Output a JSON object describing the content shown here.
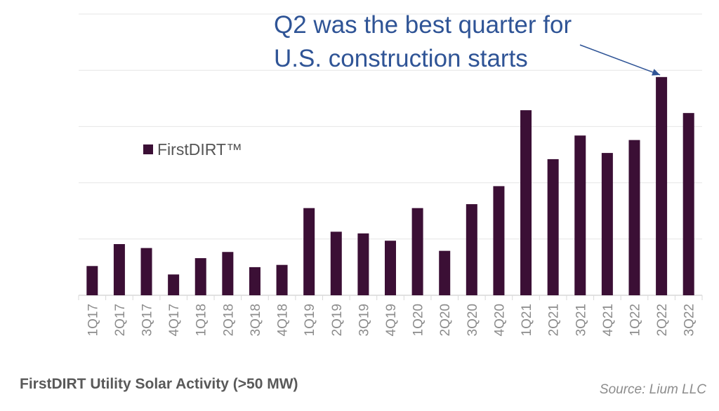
{
  "chart_data": {
    "type": "bar",
    "title": "FirstDIRT Utility Solar Activity (>50 MW)",
    "source": "Source: Lium LLC",
    "categories": [
      "1Q17",
      "2Q17",
      "3Q17",
      "4Q17",
      "1Q18",
      "2Q18",
      "3Q18",
      "4Q18",
      "1Q19",
      "2Q19",
      "3Q19",
      "4Q19",
      "1Q20",
      "2Q20",
      "3Q20",
      "4Q20",
      "1Q21",
      "2Q21",
      "3Q21",
      "4Q21",
      "1Q22",
      "2Q22",
      "3Q22"
    ],
    "series": [
      {
        "name": "FirstDIRT™",
        "color": "#3b0f35",
        "values": [
          52,
          91,
          84,
          37,
          66,
          77,
          50,
          54,
          155,
          113,
          110,
          97,
          155,
          79,
          162,
          194,
          329,
          242,
          284,
          253,
          276,
          388,
          324
        ]
      }
    ],
    "ylim": [
      0,
      500
    ],
    "y_gridlines": [
      0,
      100,
      200,
      300,
      400,
      500
    ],
    "y_tick_labels_shown": false,
    "grid": true,
    "legend_position": "left",
    "annotation": {
      "lines": [
        "Q2 was the best quarter for",
        "U.S. construction starts"
      ],
      "target_category": "2Q22",
      "color": "#2f5496"
    }
  }
}
